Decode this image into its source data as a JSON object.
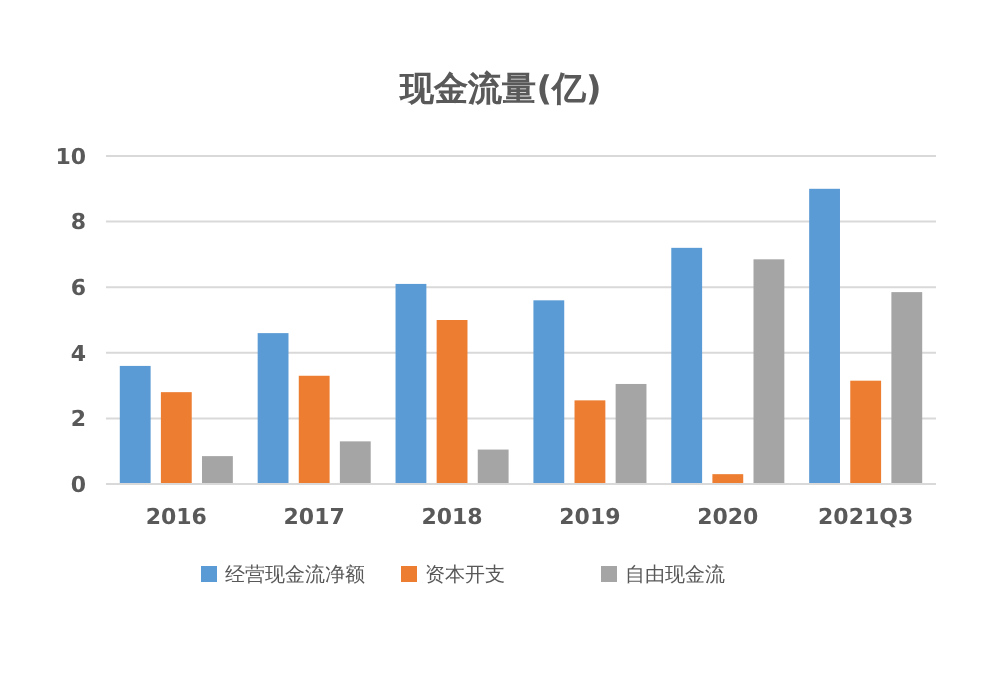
{
  "chart_data": {
    "type": "bar",
    "title": "现金流量(亿)",
    "categories": [
      "2016",
      "2017",
      "2018",
      "2019",
      "2020",
      "2021Q3"
    ],
    "series": [
      {
        "name": "经营现金流净额",
        "color": "#5b9bd5",
        "values": [
          3.6,
          4.6,
          6.1,
          5.6,
          7.2,
          9.0
        ]
      },
      {
        "name": "资本开支",
        "color": "#ed7d31",
        "values": [
          2.8,
          3.3,
          5.0,
          2.55,
          0.3,
          3.15
        ]
      },
      {
        "name": "自由现金流",
        "color": "#a5a5a5",
        "values": [
          0.85,
          1.3,
          1.05,
          3.05,
          6.85,
          5.85
        ]
      }
    ],
    "ylim": [
      0,
      10
    ],
    "yticks": [
      0,
      2,
      4,
      6,
      8,
      10
    ],
    "grid": "y",
    "legend": "bottom"
  }
}
